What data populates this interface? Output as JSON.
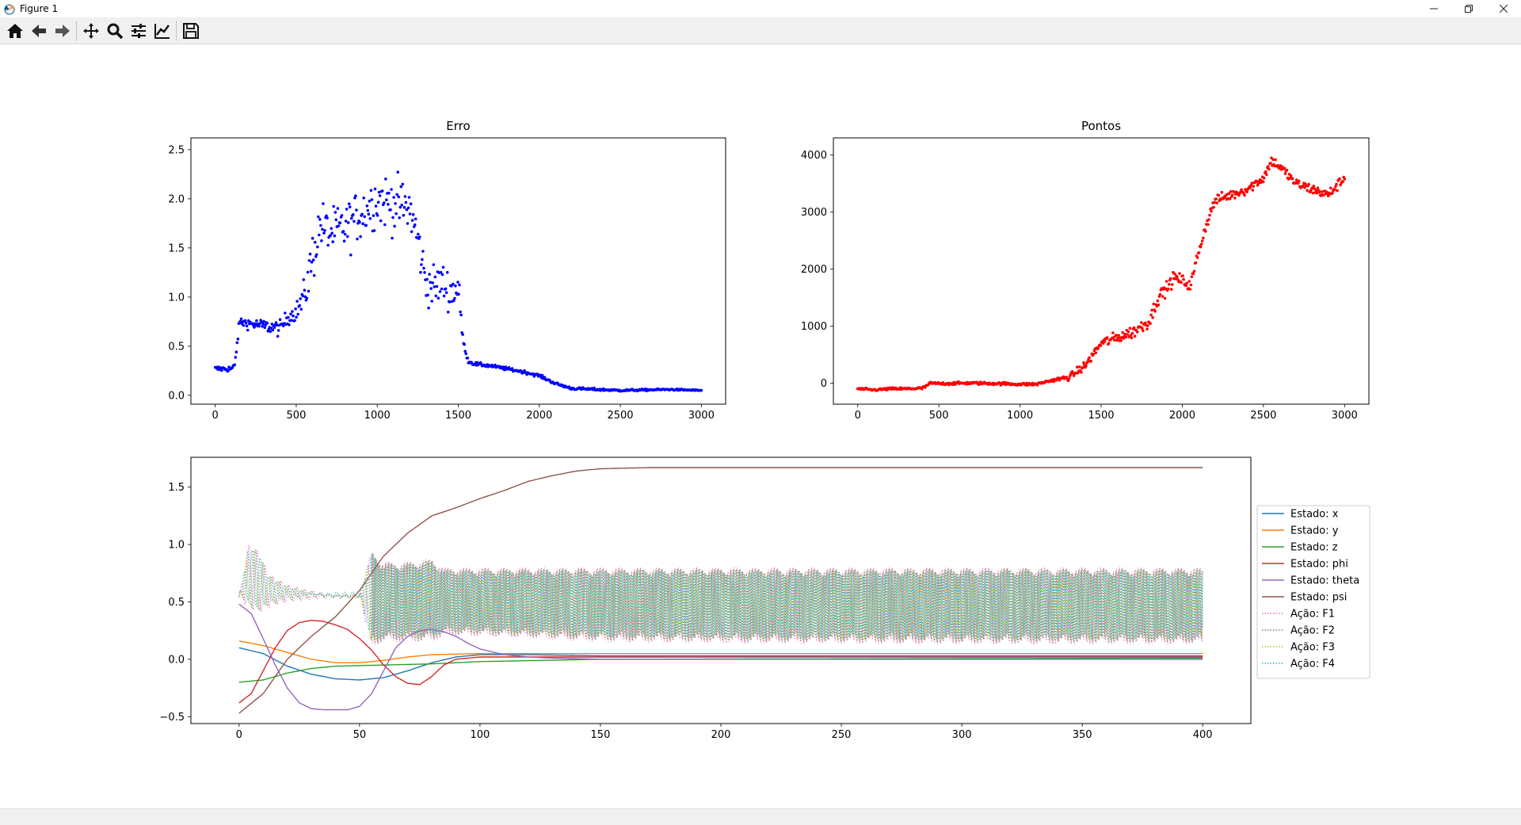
{
  "window": {
    "title": "Figure 1",
    "controls": [
      "minimize",
      "restore",
      "close"
    ]
  },
  "toolbar": {
    "buttons": [
      {
        "name": "home-icon",
        "tooltip": "Home"
      },
      {
        "name": "back-icon",
        "tooltip": "Back"
      },
      {
        "name": "forward-icon",
        "tooltip": "Forward"
      },
      {
        "name": "pan-icon",
        "tooltip": "Pan"
      },
      {
        "name": "zoom-icon",
        "tooltip": "Zoom"
      },
      {
        "name": "configure-subplots-icon",
        "tooltip": "Subplots"
      },
      {
        "name": "edit-axis-icon",
        "tooltip": "Customize"
      },
      {
        "name": "save-icon",
        "tooltip": "Save"
      }
    ]
  },
  "chart_data": [
    {
      "type": "scatter",
      "title": "Erro",
      "xlim": [
        -150,
        3150
      ],
      "ylim": [
        -0.09,
        2.62
      ],
      "xticks": [
        0,
        500,
        1000,
        1500,
        2000,
        2500,
        3000
      ],
      "yticks": [
        0.0,
        0.5,
        1.0,
        1.5,
        2.0,
        2.5
      ],
      "ytick_labels": [
        "0.0",
        "0.5",
        "1.0",
        "1.5",
        "2.0",
        "2.5"
      ],
      "color": "#0000ff",
      "n_points": 600,
      "series_x_range": [
        0,
        3000
      ],
      "trend_x": [
        0,
        100,
        120,
        150,
        250,
        400,
        450,
        500,
        550,
        600,
        650,
        700,
        800,
        900,
        1000,
        1100,
        1200,
        1250,
        1300,
        1350,
        1400,
        1450,
        1500,
        1530,
        1560,
        1600,
        1700,
        1800,
        1900,
        2000,
        2100,
        2200,
        2500,
        2800,
        3000
      ],
      "trend_y": [
        0.27,
        0.27,
        0.3,
        0.75,
        0.72,
        0.68,
        0.8,
        0.85,
        1.0,
        1.4,
        1.75,
        1.65,
        1.7,
        1.85,
        2.0,
        1.95,
        1.9,
        1.6,
        1.15,
        1.1,
        1.15,
        1.05,
        1.1,
        0.55,
        0.35,
        0.32,
        0.3,
        0.27,
        0.24,
        0.2,
        0.12,
        0.07,
        0.05,
        0.06,
        0.05
      ],
      "spread_x": [
        0,
        100,
        120,
        150,
        500,
        550,
        600,
        650,
        1000,
        1200,
        1250,
        1300,
        1500,
        1530,
        1600,
        3000
      ],
      "spread_y": [
        0.05,
        0.05,
        0.05,
        0.08,
        0.15,
        0.3,
        0.45,
        0.4,
        0.45,
        0.45,
        0.4,
        0.35,
        0.35,
        0.04,
        0.03,
        0.01
      ]
    },
    {
      "type": "scatter",
      "title": "Pontos",
      "xlim": [
        -150,
        3150
      ],
      "ylim": [
        -370,
        4300
      ],
      "xticks": [
        0,
        500,
        1000,
        1500,
        2000,
        2500,
        3000
      ],
      "yticks": [
        0,
        1000,
        2000,
        3000,
        4000
      ],
      "ytick_labels": [
        "0",
        "1000",
        "2000",
        "3000",
        "4000"
      ],
      "color": "#ff0000",
      "n_points": 600,
      "series_x_range": [
        0,
        3000
      ],
      "trend_x": [
        0,
        100,
        200,
        300,
        400,
        450,
        500,
        700,
        900,
        1000,
        1100,
        1200,
        1300,
        1400,
        1500,
        1600,
        1700,
        1800,
        1850,
        1900,
        1950,
        2000,
        2050,
        2100,
        2150,
        2200,
        2300,
        2400,
        2500,
        2550,
        2600,
        2700,
        2800,
        2900,
        3000
      ],
      "trend_y": [
        -100,
        -120,
        -100,
        -100,
        -90,
        0,
        -10,
        0,
        -10,
        -20,
        -20,
        50,
        100,
        300,
        700,
        800,
        900,
        1100,
        1500,
        1650,
        1850,
        1800,
        1700,
        2300,
        2800,
        3200,
        3300,
        3400,
        3600,
        3900,
        3800,
        3500,
        3400,
        3300,
        3600
      ],
      "spread_x": [
        0,
        400,
        1200,
        1400,
        1800,
        2200,
        3000
      ],
      "spread_y": [
        30,
        40,
        40,
        130,
        200,
        150,
        150
      ]
    },
    {
      "type": "line",
      "title": "",
      "xlim": [
        -20,
        420
      ],
      "ylim": [
        -0.56,
        1.76
      ],
      "xticks": [
        0,
        50,
        100,
        150,
        200,
        250,
        300,
        350,
        400
      ],
      "yticks": [
        -0.5,
        0.0,
        0.5,
        1.0,
        1.5
      ],
      "ytick_labels": [
        "−0.5",
        "0.0",
        "0.5",
        "1.0",
        "1.5"
      ],
      "legend_position": "right",
      "series": [
        {
          "name": "Estado: x",
          "color": "#1f77b4",
          "style": "solid",
          "x": [
            0,
            10,
            20,
            30,
            40,
            50,
            60,
            70,
            80,
            90,
            100,
            120,
            150,
            400
          ],
          "y": [
            0.1,
            0.05,
            -0.06,
            -0.13,
            -0.17,
            -0.18,
            -0.16,
            -0.1,
            -0.03,
            0.02,
            0.04,
            0.04,
            0.03,
            0.03
          ]
        },
        {
          "name": "Estado: y",
          "color": "#ff7f0e",
          "style": "solid",
          "x": [
            0,
            10,
            20,
            30,
            40,
            50,
            60,
            70,
            80,
            100,
            150,
            400
          ],
          "y": [
            0.16,
            0.12,
            0.06,
            0.0,
            -0.03,
            -0.03,
            -0.01,
            0.02,
            0.04,
            0.05,
            0.05,
            0.05
          ]
        },
        {
          "name": "Estado: z",
          "color": "#2ca02c",
          "style": "solid",
          "x": [
            0,
            10,
            20,
            30,
            40,
            60,
            80,
            100,
            150,
            400
          ],
          "y": [
            -0.2,
            -0.18,
            -0.12,
            -0.08,
            -0.06,
            -0.05,
            -0.04,
            -0.02,
            0.0,
            0.01
          ]
        },
        {
          "name": "Estado: phi",
          "color": "#d62728",
          "style": "solid",
          "x": [
            0,
            5,
            10,
            15,
            20,
            25,
            30,
            35,
            40,
            45,
            50,
            55,
            60,
            65,
            70,
            75,
            80,
            85,
            90,
            100,
            120,
            400
          ],
          "y": [
            -0.38,
            -0.3,
            -0.1,
            0.1,
            0.25,
            0.32,
            0.34,
            0.33,
            0.3,
            0.26,
            0.18,
            0.08,
            -0.05,
            -0.15,
            -0.21,
            -0.22,
            -0.15,
            -0.05,
            0.0,
            0.02,
            0.02,
            0.02
          ]
        },
        {
          "name": "Estado: theta",
          "color": "#9467bd",
          "style": "solid",
          "x": [
            0,
            5,
            10,
            15,
            20,
            25,
            30,
            35,
            40,
            45,
            50,
            55,
            60,
            65,
            70,
            75,
            80,
            85,
            90,
            95,
            100,
            110,
            120,
            130,
            150,
            400
          ],
          "y": [
            0.48,
            0.4,
            0.18,
            -0.05,
            -0.25,
            -0.38,
            -0.43,
            -0.44,
            -0.44,
            -0.44,
            -0.41,
            -0.3,
            -0.1,
            0.1,
            0.2,
            0.25,
            0.26,
            0.24,
            0.2,
            0.14,
            0.09,
            0.04,
            0.02,
            0.01,
            0.0,
            0.0
          ]
        },
        {
          "name": "Estado: psi",
          "color": "#8c564b",
          "style": "solid",
          "x": [
            0,
            10,
            20,
            30,
            40,
            50,
            60,
            70,
            80,
            90,
            100,
            110,
            120,
            130,
            140,
            150,
            170,
            200,
            250,
            400
          ],
          "y": [
            -0.47,
            -0.3,
            0.0,
            0.2,
            0.37,
            0.6,
            0.9,
            1.1,
            1.25,
            1.32,
            1.4,
            1.47,
            1.55,
            1.6,
            1.64,
            1.66,
            1.67,
            1.67,
            1.67,
            1.67
          ]
        },
        {
          "name": "Ação: F1",
          "color": "#e377c2",
          "style": "dotted"
        },
        {
          "name": "Ação: F2",
          "color": "#7f7f7f",
          "style": "dotted"
        },
        {
          "name": "Ação: F3",
          "color": "#bcbd22",
          "style": "dotted"
        },
        {
          "name": "Ação: F4",
          "color": "#17becf",
          "style": "dotted"
        }
      ],
      "action_envelope": {
        "x": [
          0,
          4,
          8,
          12,
          20,
          30,
          40,
          50,
          55,
          60,
          70,
          80,
          85,
          100,
          150,
          200,
          300,
          400
        ],
        "upper": [
          0.55,
          1.0,
          0.95,
          0.75,
          0.65,
          0.6,
          0.56,
          0.56,
          0.95,
          0.85,
          0.85,
          0.88,
          0.8,
          0.8,
          0.8,
          0.8,
          0.8,
          0.8
        ],
        "lower": [
          0.55,
          0.45,
          0.4,
          0.45,
          0.5,
          0.52,
          0.54,
          0.54,
          0.1,
          0.15,
          0.15,
          0.15,
          0.2,
          0.2,
          0.15,
          0.14,
          0.13,
          0.13
        ]
      }
    }
  ]
}
